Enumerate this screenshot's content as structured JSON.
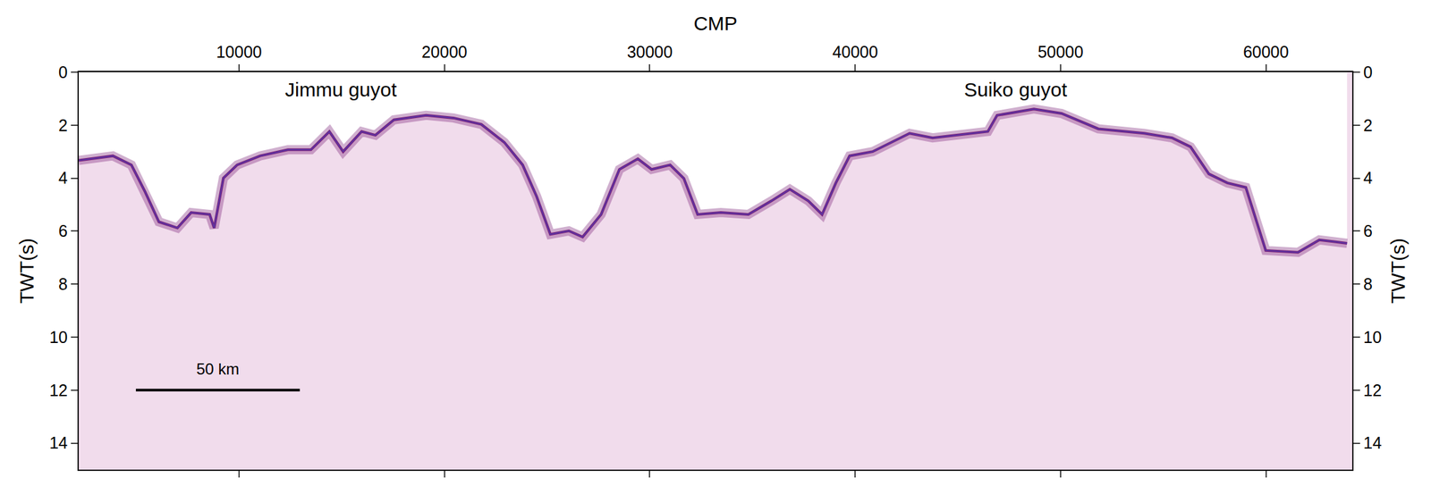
{
  "chart_data": {
    "type": "line",
    "x_label": "CMP",
    "y_label": "TWT(s)",
    "y2_label": "TWT(s)",
    "color": "#7b1f78",
    "x": [
      2200,
      3860,
      4760,
      5430,
      6100,
      7000,
      7670,
      8570,
      8790,
      9240,
      9910,
      11030,
      12380,
      13500,
      14400,
      15070,
      15970,
      16640,
      17540,
      19110,
      20450,
      21800,
      22920,
      23810,
      24490,
      25160,
      26060,
      26730,
      27630,
      28520,
      29420,
      30090,
      30990,
      31660,
      32330,
      33460,
      34800,
      35920,
      36820,
      37720,
      38390,
      39060,
      39730,
      40850,
      42650,
      43770,
      46460,
      46910,
      48700,
      50050,
      51840,
      54080,
      55430,
      56330,
      57220,
      58120,
      59020,
      59990,
      61560,
      62600,
      63950
    ],
    "values": [
      3.33,
      3.16,
      3.5,
      4.52,
      5.65,
      5.88,
      5.3,
      5.37,
      5.88,
      4.0,
      3.5,
      3.16,
      2.93,
      2.93,
      2.24,
      3.0,
      2.24,
      2.38,
      1.8,
      1.63,
      1.73,
      1.97,
      2.65,
      3.5,
      4.69,
      6.12,
      5.99,
      6.22,
      5.37,
      3.67,
      3.27,
      3.67,
      3.5,
      4.01,
      5.37,
      5.3,
      5.37,
      4.86,
      4.42,
      4.86,
      5.37,
      4.18,
      3.16,
      3.0,
      2.31,
      2.48,
      2.24,
      1.63,
      1.39,
      1.56,
      2.14,
      2.31,
      2.48,
      2.82,
      3.84,
      4.18,
      4.35,
      6.73,
      6.8,
      6.33,
      6.46
    ],
    "xlim": [
      2200,
      64200
    ],
    "xticks": [
      10000,
      20000,
      30000,
      40000,
      50000,
      60000
    ],
    "ylim": [
      15,
      0
    ],
    "yticks": [
      0,
      2,
      4,
      6,
      8,
      10,
      12,
      14
    ],
    "y2lim": [
      15,
      0
    ],
    "y2ticks": [
      0,
      2,
      4,
      6,
      8,
      10,
      12,
      14
    ],
    "grid": false,
    "annotations": [
      {
        "text": "Jimmu guyot",
        "x": 14980,
        "y": 0.65
      },
      {
        "text": "Suiko guyot",
        "x": 47800,
        "y": 0.65
      }
    ],
    "scale_bar": {
      "label": "50 km",
      "x": [
        4980,
        12960
      ],
      "y": 12,
      "label_y": 11.2
    }
  }
}
